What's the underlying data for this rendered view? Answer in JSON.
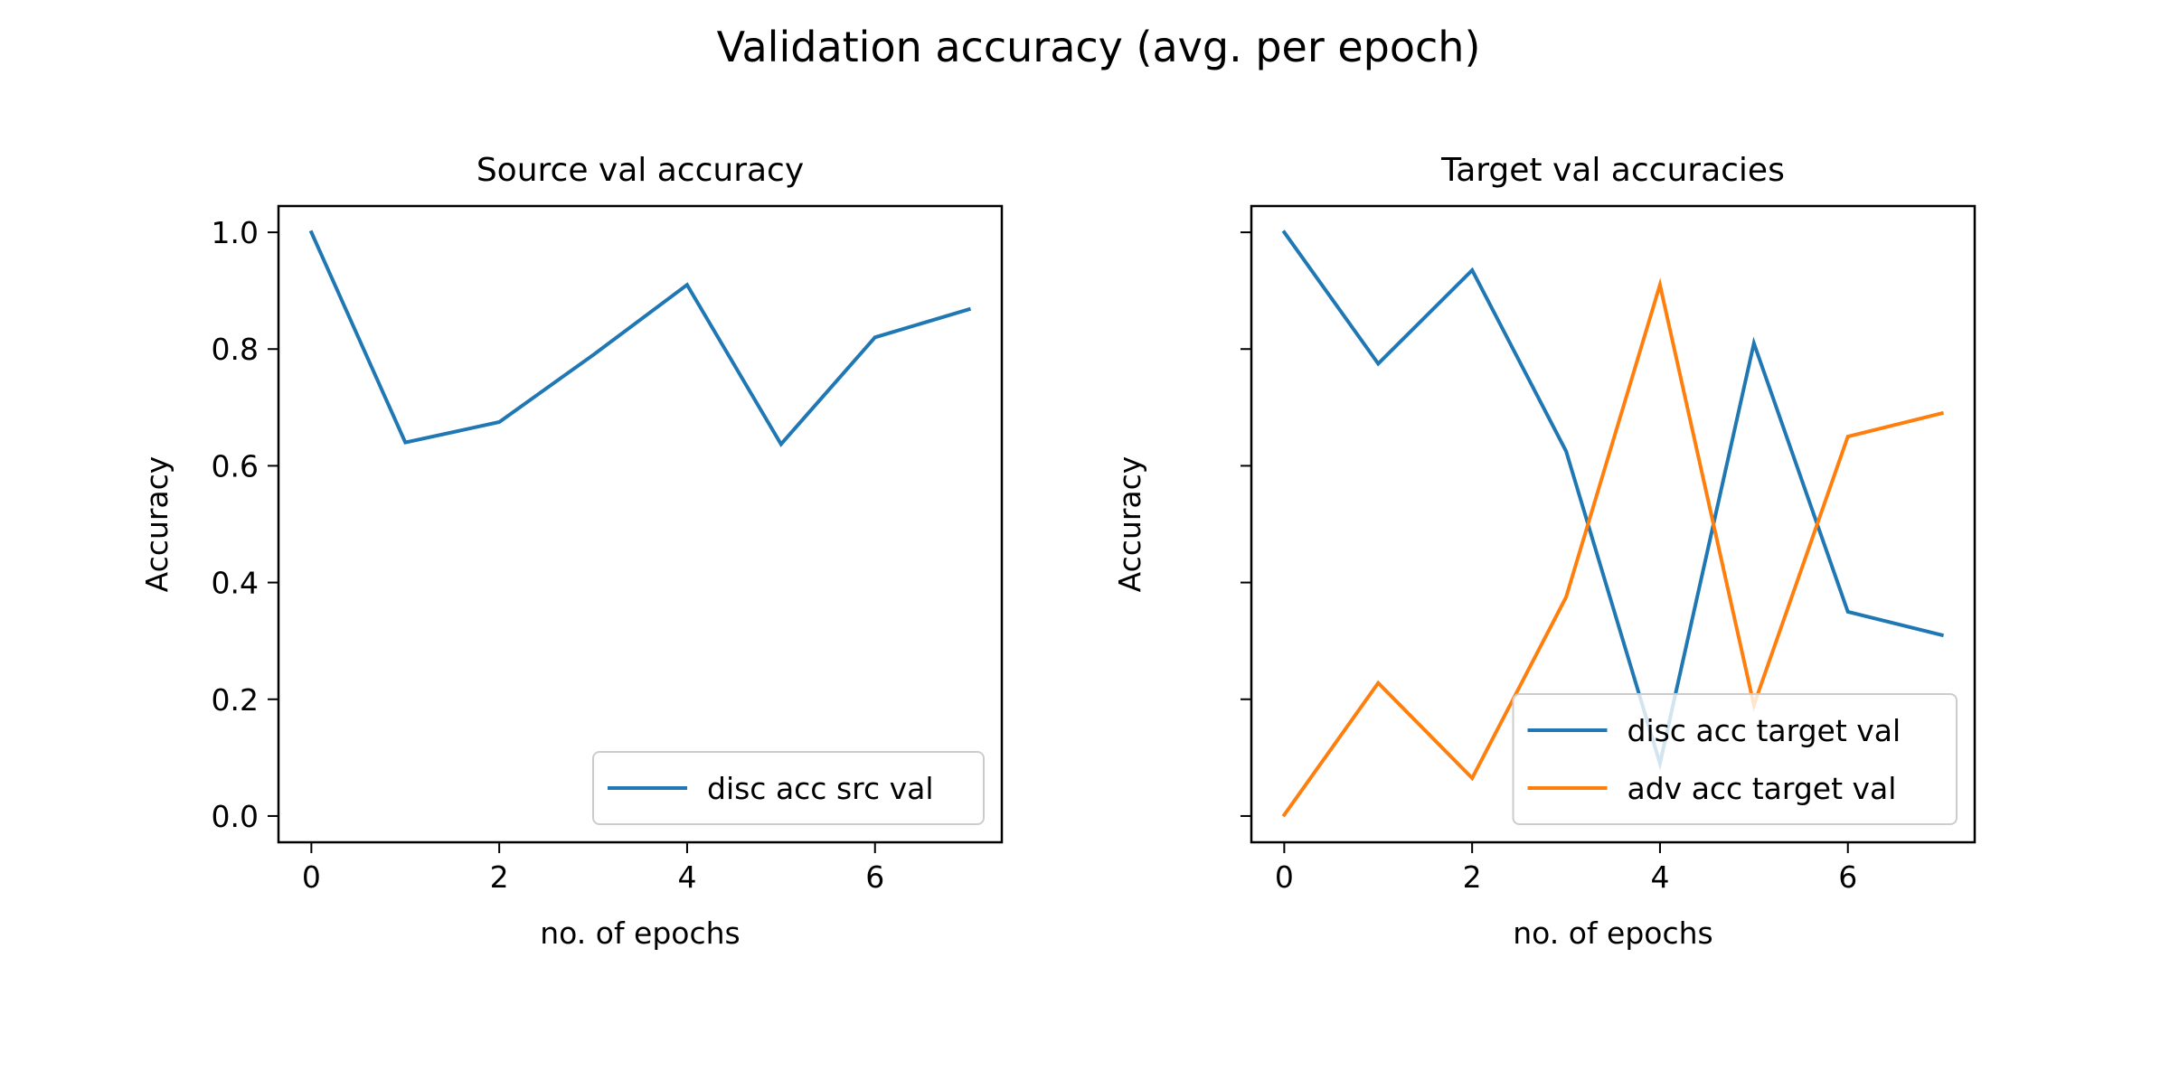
{
  "figure": {
    "suptitle": "Validation accuracy (avg. per epoch)"
  },
  "colors": {
    "blue": "#1f77b4",
    "orange": "#ff7f0e",
    "axes": "#000000",
    "legend_border": "#cccccc"
  },
  "chart_data": [
    {
      "type": "line",
      "title": "Source val accuracy",
      "xlabel": "no. of epochs",
      "ylabel": "Accuracy",
      "xlim": [
        -0.35,
        7.35
      ],
      "ylim": [
        -0.045,
        1.045
      ],
      "xticks": [
        0,
        2,
        4,
        6
      ],
      "xtick_labels": [
        "0",
        "2",
        "4",
        "6"
      ],
      "yticks": [
        0.0,
        0.2,
        0.4,
        0.6,
        0.8,
        1.0
      ],
      "ytick_labels": [
        "0.0",
        "0.2",
        "0.4",
        "0.6",
        "0.8",
        "1.0"
      ],
      "legend_loc": "lower-right",
      "x": [
        0,
        1,
        2,
        3,
        4,
        5,
        6,
        7
      ],
      "series": [
        {
          "name": "disc acc src val",
          "color": "#1f77b4",
          "values": [
            1.0,
            0.64,
            0.675,
            0.79,
            0.91,
            0.637,
            0.82,
            0.868
          ]
        }
      ]
    },
    {
      "type": "line",
      "title": "Target val accuracies",
      "xlabel": "no. of epochs",
      "ylabel": "Accuracy",
      "xlim": [
        -0.35,
        7.35
      ],
      "ylim": [
        -0.045,
        1.045
      ],
      "xticks": [
        0,
        2,
        4,
        6
      ],
      "xtick_labels": [
        "0",
        "2",
        "4",
        "6"
      ],
      "yticks": [
        0.0,
        0.2,
        0.4,
        0.6,
        0.8,
        1.0
      ],
      "ytick_labels": [
        "",
        "",
        "",
        "",
        "",
        ""
      ],
      "legend_loc": "lower-right",
      "x": [
        0,
        1,
        2,
        3,
        4,
        5,
        6,
        7
      ],
      "series": [
        {
          "name": "disc acc target val",
          "color": "#1f77b4",
          "values": [
            1.0,
            0.775,
            0.935,
            0.625,
            0.09,
            0.81,
            0.35,
            0.31
          ]
        },
        {
          "name": "adv acc target val",
          "color": "#ff7f0e",
          "values": [
            0.002,
            0.228,
            0.065,
            0.375,
            0.91,
            0.19,
            0.65,
            0.69
          ]
        }
      ]
    }
  ]
}
